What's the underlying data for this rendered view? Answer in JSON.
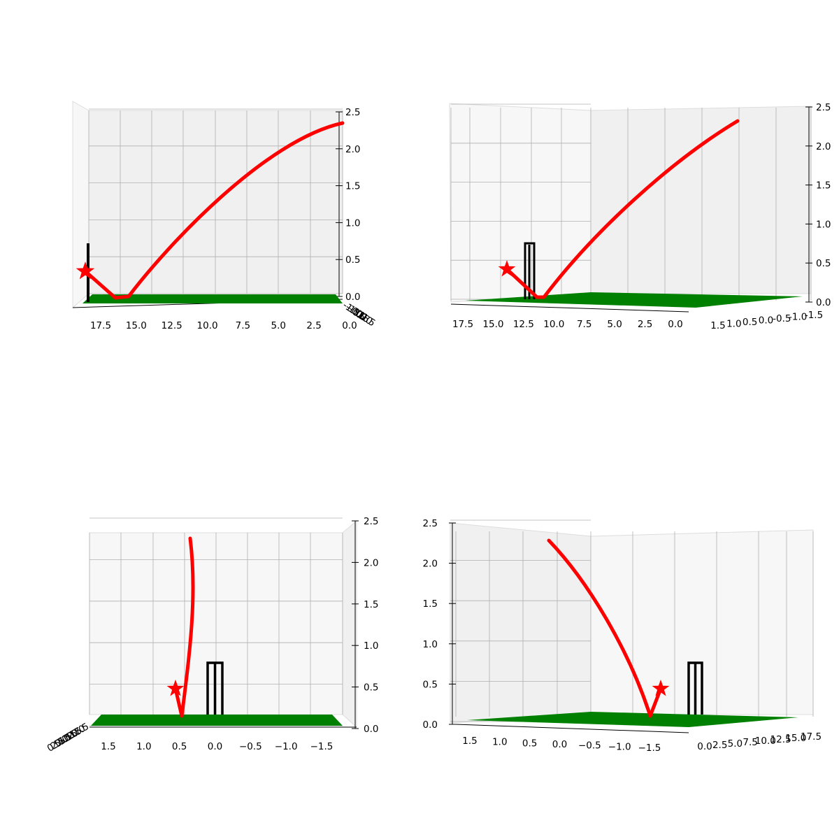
{
  "figure": {
    "colors": {
      "trajectory": "#ff0000",
      "impact_marker": "#ff0000",
      "pitch": "#008000",
      "stumps": "#000000",
      "grid": "#b0b0b0",
      "pane_light": "#f7f7f7",
      "pane_dark": "#f0f0f0"
    }
  },
  "chart_data": [
    {
      "type": "line3d",
      "panel": "top-left",
      "view": "side",
      "x_ticks": [
        "17.5",
        "15.0",
        "12.5",
        "10.0",
        "7.5",
        "5.0",
        "2.5",
        "0.0"
      ],
      "y_ticks": [
        "-1.5",
        "-1.0",
        "-0.5",
        "0.0",
        "0.5",
        "1.0",
        "1.5"
      ],
      "z_ticks": [
        "0.0",
        "0.5",
        "1.0",
        "1.5",
        "2.0",
        "2.5"
      ],
      "z_range": [
        0,
        2.5
      ],
      "grid": true
    },
    {
      "type": "line3d",
      "panel": "top-right",
      "view": "angled",
      "x_ticks": [
        "17.5",
        "15.0",
        "12.5",
        "10.0",
        "7.5",
        "5.0",
        "2.5",
        "0.0"
      ],
      "y_ticks": [
        "1.5",
        "1.0",
        "0.5",
        "0.0",
        "-0.5",
        "-1.0",
        "-1.5"
      ],
      "z_ticks": [
        "0.0",
        "0.5",
        "1.0",
        "1.5",
        "2.0",
        "2.5"
      ],
      "z_range": [
        0,
        2.5
      ],
      "grid": true
    },
    {
      "type": "line3d",
      "panel": "bottom-left",
      "view": "front",
      "x_ticks": [
        "0.0",
        "2.5",
        "5.0",
        "7.5",
        "10.0",
        "12.5",
        "15.0",
        "17.5"
      ],
      "y_ticks": [
        "1.5",
        "1.0",
        "0.5",
        "0.0",
        "−0.5",
        "−1.0",
        "−1.5"
      ],
      "z_ticks": [
        "0.0",
        "0.5",
        "1.0",
        "1.5",
        "2.0",
        "2.5"
      ],
      "z_range": [
        0,
        2.5
      ],
      "grid": true
    },
    {
      "type": "line3d",
      "panel": "bottom-right",
      "view": "angled-front",
      "x_ticks": [
        "0.0",
        "2.5",
        "5.0",
        "7.5",
        "10.0",
        "12.5",
        "15.0",
        "17.5"
      ],
      "y_ticks": [
        "1.5",
        "1.0",
        "0.5",
        "0.0",
        "−0.5",
        "−1.0",
        "−1.5"
      ],
      "z_ticks": [
        "0.0",
        "0.5",
        "1.0",
        "1.5",
        "2.0",
        "2.5"
      ],
      "z_range": [
        0,
        2.5
      ],
      "grid": true
    }
  ]
}
